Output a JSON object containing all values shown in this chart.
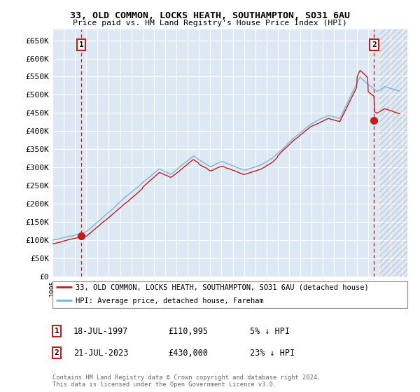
{
  "title_line1": "33, OLD COMMON, LOCKS HEATH, SOUTHAMPTON, SO31 6AU",
  "title_line2": "Price paid vs. HM Land Registry's House Price Index (HPI)",
  "fig_bg_color": "#ffffff",
  "plot_bg_color": "#dce9f5",
  "grid_color": "#ffffff",
  "hpi_color": "#7ab4d8",
  "price_color": "#c8181a",
  "ylim": [
    0,
    680000
  ],
  "yticks": [
    0,
    50000,
    100000,
    150000,
    200000,
    250000,
    300000,
    350000,
    400000,
    450000,
    500000,
    550000,
    600000,
    650000
  ],
  "ytick_labels": [
    "£0",
    "£50K",
    "£100K",
    "£150K",
    "£200K",
    "£250K",
    "£300K",
    "£350K",
    "£400K",
    "£450K",
    "£500K",
    "£550K",
    "£600K",
    "£650K"
  ],
  "xmin": 1995.0,
  "xmax": 2026.5,
  "sale1_x": 1997.54,
  "sale1_y": 110995,
  "sale1_label": "1",
  "sale1_date": "18-JUL-1997",
  "sale1_price": "£110,995",
  "sale1_hpi": "5% ↓ HPI",
  "sale2_x": 2023.54,
  "sale2_y": 430000,
  "sale2_label": "2",
  "sale2_date": "21-JUL-2023",
  "sale2_price": "£430,000",
  "sale2_hpi": "23% ↓ HPI",
  "legend_line1": "33, OLD COMMON, LOCKS HEATH, SOUTHAMPTON, SO31 6AU (detached house)",
  "legend_line2": "HPI: Average price, detached house, Fareham",
  "footer": "Contains HM Land Registry data © Crown copyright and database right 2024.\nThis data is licensed under the Open Government Licence v3.0."
}
